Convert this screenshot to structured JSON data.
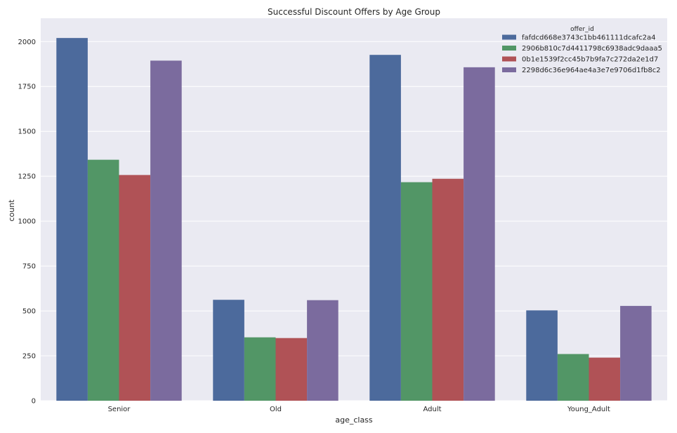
{
  "chart_data": {
    "type": "bar",
    "title": "Successful Discount Offers by Age Group",
    "xlabel": "age_class",
    "ylabel": "count",
    "ylim": [
      0,
      2130
    ],
    "yticks": [
      0,
      250,
      500,
      750,
      1000,
      1250,
      1500,
      1750,
      2000
    ],
    "grid": true,
    "background_color": "#eaeaf2",
    "legend": {
      "title": "offer_id",
      "placement": "top-right"
    },
    "categories": [
      "Senior",
      "Old",
      "Adult",
      "Young_Adult"
    ],
    "series": [
      {
        "name": "fafdcd668e3743c1bb461111dcafc2a4",
        "color": "#4c6a9c",
        "values": [
          2020,
          562,
          1926,
          503
        ]
      },
      {
        "name": "2906b810c7d4411798c6938adc9daaa5",
        "color": "#529666",
        "values": [
          1342,
          353,
          1217,
          260
        ]
      },
      {
        "name": "0b1e1539f2cc45b7b9fa7c272da2e1d7",
        "color": "#b05256",
        "values": [
          1257,
          349,
          1236,
          240
        ]
      },
      {
        "name": "2298d6c36e964ae4a3e7e9706d1fb8c2",
        "color": "#7b6b9e",
        "values": [
          1894,
          560,
          1857,
          528
        ]
      }
    ]
  }
}
